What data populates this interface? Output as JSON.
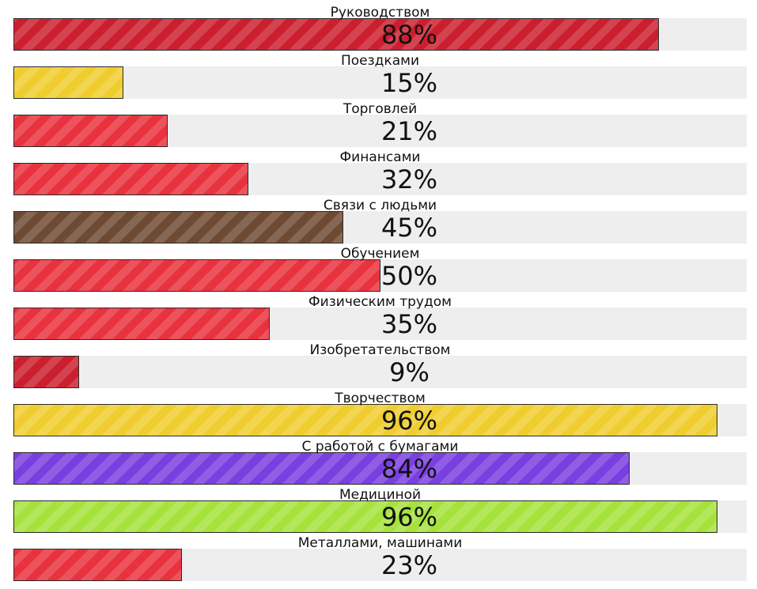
{
  "chart_data": {
    "type": "bar",
    "orientation": "horizontal",
    "xlim": [
      0,
      100
    ],
    "grid": false,
    "categories": [
      "Руководством",
      "Поездками",
      "Торговлей",
      "Финансами",
      "Связи с людьми",
      "Обучением",
      "Физическим трудом",
      "Изобретательством",
      "Творчеством",
      "С работой с бумагами",
      "Медициной",
      "Металлами, машинами"
    ],
    "values": [
      88,
      15,
      21,
      32,
      45,
      50,
      35,
      9,
      96,
      84,
      96,
      23
    ],
    "value_labels": [
      "88%",
      "15%",
      "21%",
      "32%",
      "45%",
      "50%",
      "35%",
      "9%",
      "96%",
      "84%",
      "96%",
      "23%"
    ],
    "colors": [
      "#cc1f2e",
      "#f0cd2e",
      "#e8323e",
      "#e8323e",
      "#6e4a32",
      "#e8323e",
      "#e8323e",
      "#cc1f2e",
      "#f0cd2e",
      "#7a3fe0",
      "#a6e23c",
      "#e8323e"
    ],
    "track_color": "#eeeeee"
  }
}
